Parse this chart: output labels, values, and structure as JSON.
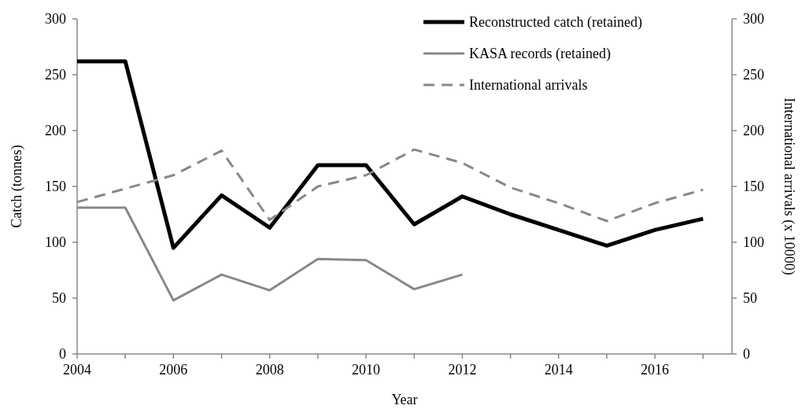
{
  "chart_data": {
    "type": "line",
    "xlabel": "Year",
    "ylabel": "Catch (tonnes)",
    "y2label": "International arrivals (x 10000)",
    "x": [
      2004,
      2005,
      2006,
      2007,
      2008,
      2009,
      2010,
      2011,
      2012,
      2013,
      2014,
      2015,
      2016,
      2017
    ],
    "xlim": [
      2004,
      2017.6
    ],
    "xticks": [
      2004,
      {
        "value": 2005,
        "label": null
      },
      2006,
      {
        "value": 2007,
        "label": null
      },
      2008,
      {
        "value": 2009,
        "label": null
      },
      2010,
      {
        "value": 2011,
        "label": null
      },
      2012,
      {
        "value": 2013,
        "label": null
      },
      2014,
      {
        "value": 2015,
        "label": null
      },
      2016,
      {
        "value": 2017,
        "label": null
      }
    ],
    "ylim": [
      0,
      300
    ],
    "yticks": [
      0,
      50,
      100,
      150,
      200,
      250,
      300
    ],
    "y2lim": [
      0,
      300
    ],
    "y2ticks": [
      0,
      50,
      100,
      150,
      200,
      250,
      300
    ],
    "series": [
      {
        "name": "Reconstructed catch (retained)",
        "color": "#000000",
        "values": [
          262,
          262,
          95,
          142,
          113,
          169,
          169,
          116,
          141,
          125,
          111,
          97,
          111,
          121
        ]
      },
      {
        "name": "KASA records (retained)",
        "color": "#888888",
        "values": [
          131,
          131,
          48,
          71,
          57,
          85,
          84,
          58,
          71,
          null,
          null,
          null,
          null,
          null
        ]
      },
      {
        "name": "International arrivals",
        "color": "#888888",
        "axis": "y2",
        "line_style": "dashed",
        "values": [
          136,
          148,
          160,
          182,
          120,
          150,
          160,
          183,
          171,
          149,
          135,
          119,
          135,
          147
        ]
      }
    ],
    "legend": "top right",
    "grid": false
  }
}
